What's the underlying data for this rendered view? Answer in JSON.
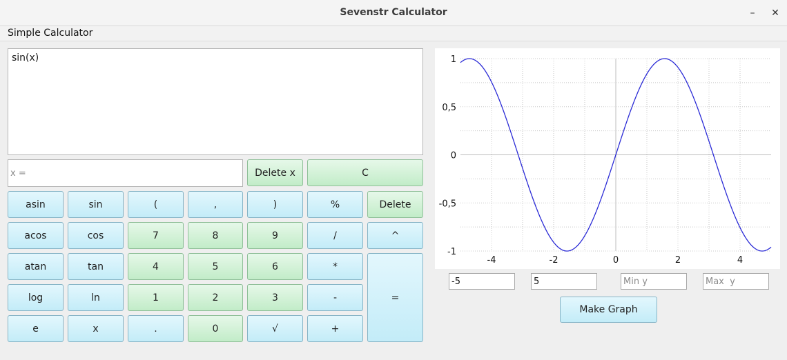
{
  "window": {
    "title": "Sevenstr Calculator",
    "minimize": "–",
    "close": "✕"
  },
  "menu": {
    "label": "Simple Calculator"
  },
  "expression": {
    "value": "sin(x)"
  },
  "x_field": {
    "placeholder": "x =",
    "value": ""
  },
  "top_buttons": {
    "delete_x": "Delete x",
    "clear": "C"
  },
  "keypad": {
    "row1": [
      "asin",
      "sin",
      "(",
      ",",
      ")",
      "%",
      "Delete"
    ],
    "row2": [
      "acos",
      "cos",
      "7",
      "8",
      "9",
      "/",
      "^"
    ],
    "row3": [
      "atan",
      "tan",
      "4",
      "5",
      "6",
      "*"
    ],
    "row4": [
      "log",
      "ln",
      "1",
      "2",
      "3",
      "-"
    ],
    "row5": [
      "e",
      "x",
      ".",
      "0",
      "√",
      "+"
    ],
    "equals": "="
  },
  "graph": {
    "x_ticks": [
      "-4",
      "-2",
      "0",
      "2",
      "4"
    ],
    "y_ticks": [
      "1",
      "0,5",
      "0",
      "-0,5",
      "-1"
    ],
    "line_color": "#2b2bd6"
  },
  "chart_data": {
    "type": "line",
    "function": "sin(x)",
    "xlim": [
      -5,
      5
    ],
    "ylim": [
      -1,
      1
    ],
    "grid": true,
    "series": [
      {
        "values_from": "sin(x)"
      }
    ]
  },
  "range": {
    "min_x": "-5",
    "max_x": "5",
    "min_y_placeholder": "Min y",
    "max_y_placeholder": "Max  y",
    "make_graph": "Make Graph"
  }
}
